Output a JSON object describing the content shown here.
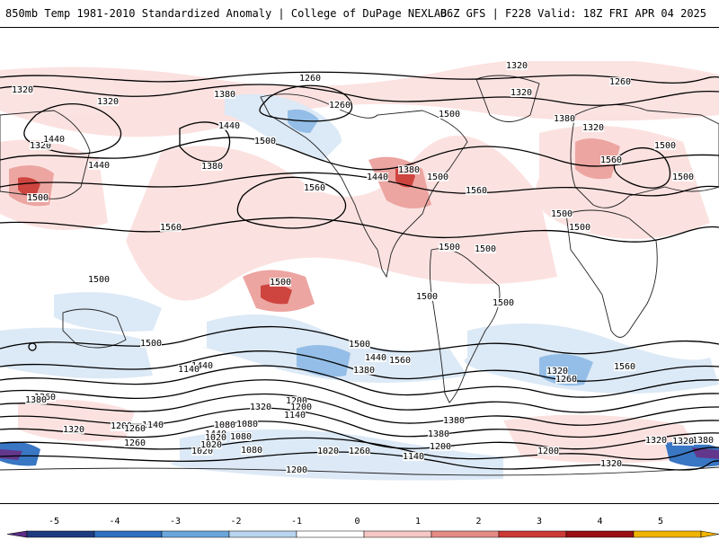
{
  "header": {
    "left_title": "850mb Temp 1981-2010 Standardized Anomaly | College of DuPage NEXLAB",
    "right_title": "06Z GFS | F228 Valid: 18Z FRI APR 04 2025"
  },
  "colorbar": {
    "ticks": [
      "-5",
      "-4",
      "-3",
      "-2",
      "-1",
      "0",
      "1",
      "2",
      "3",
      "4",
      "5"
    ],
    "colors": [
      "#5b2d86",
      "#1f3b80",
      "#2f6fc0",
      "#6aa6dc",
      "#b8d4ef",
      "#ffffff",
      "#f6c7c4",
      "#e58a85",
      "#cc3a35",
      "#990f14",
      "#f0b400"
    ]
  },
  "contour_labels": [
    "1320",
    "1320",
    "1260",
    "1320",
    "1260",
    "1320",
    "1380",
    "1320",
    "1440",
    "1380",
    "1260",
    "1500",
    "1440",
    "1320",
    "1380",
    "1500",
    "1440",
    "1560",
    "1500",
    "1380",
    "1500",
    "1440",
    "1500",
    "1560",
    "1560",
    "1500",
    "1500",
    "1500",
    "1560",
    "1500",
    "1500",
    "1500",
    "1500",
    "1500",
    "1500",
    "1440",
    "1500",
    "1560",
    "1560",
    "1500",
    "1440",
    "1320",
    "1380",
    "1260",
    "1260",
    "1320",
    "1200",
    "1320",
    "1260",
    "1380",
    "1440",
    "1200",
    "1140",
    "1140",
    "1080",
    "1380",
    "1200",
    "1080",
    "1020",
    "1260",
    "1080",
    "1140",
    "1260",
    "1020",
    "1020",
    "1320",
    "1380",
    "1200",
    "1320",
    "1200",
    "1080",
    "1200",
    "1380",
    "1260",
    "1140",
    "1020",
    "1320"
  ],
  "colors": {
    "contour": "#000000",
    "coast": "#222222",
    "border": "#555555"
  }
}
